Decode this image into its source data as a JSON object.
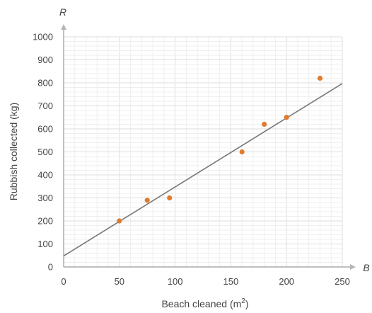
{
  "chart_data": {
    "type": "scatter",
    "title": "",
    "xlabel": "Beach cleaned (m",
    "xlabel_sup": "2",
    "xlabel_close": ")",
    "ylabel": "Rubbish collected (kg)",
    "x_axis_letter": "B",
    "y_axis_letter": "R",
    "xlim": [
      0,
      250
    ],
    "ylim": [
      0,
      1000
    ],
    "x_ticks": [
      0,
      50,
      100,
      150,
      200,
      250
    ],
    "y_ticks": [
      0,
      100,
      200,
      300,
      400,
      500,
      600,
      700,
      800,
      900,
      1000
    ],
    "grid": true,
    "legend": "none",
    "points": [
      {
        "x": 50,
        "y": 200
      },
      {
        "x": 75,
        "y": 290
      },
      {
        "x": 95,
        "y": 300
      },
      {
        "x": 160,
        "y": 500
      },
      {
        "x": 180,
        "y": 620
      },
      {
        "x": 200,
        "y": 650
      },
      {
        "x": 230,
        "y": 820
      }
    ],
    "trend_line": {
      "x": [
        0,
        250
      ],
      "y": [
        48,
        797
      ]
    },
    "colors": {
      "point": "#e07b2e",
      "trend_line": "#777777",
      "axis": "#9a9a9a",
      "grid_major": "#dedede",
      "grid_minor": "#efefef",
      "text": "#444444"
    }
  }
}
